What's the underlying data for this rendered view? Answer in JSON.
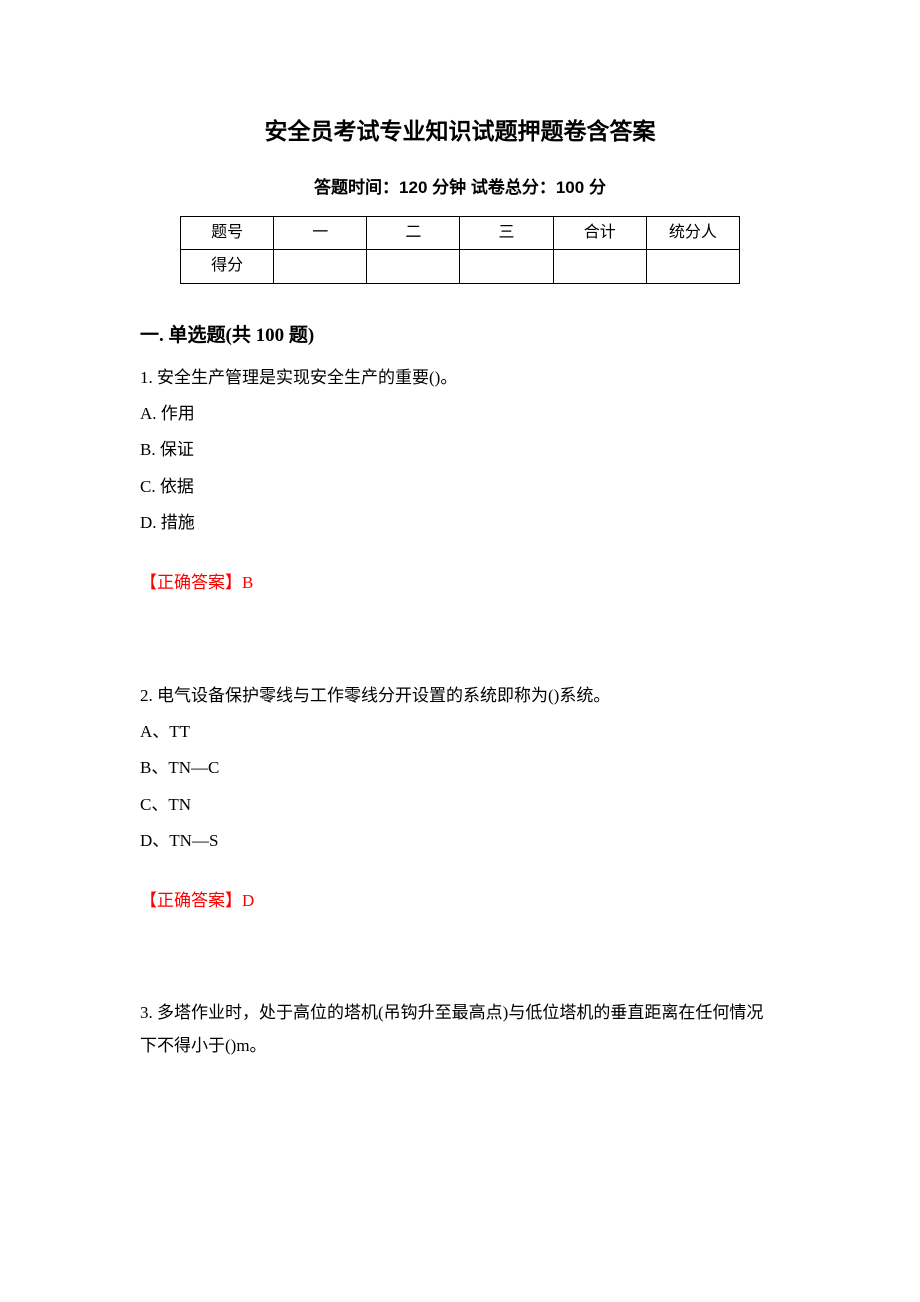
{
  "title": "安全员考试专业知识试题押题卷含答案",
  "subtitle": "答题时间：120 分钟    试卷总分：100 分",
  "table": {
    "row1": [
      "题号",
      "一",
      "二",
      "三",
      "合计",
      "统分人"
    ],
    "row2": [
      "得分",
      "",
      "",
      "",
      "",
      ""
    ]
  },
  "section_heading": "一. 单选题(共 100 题)",
  "questions": [
    {
      "stem": "1. 安全生产管理是实现安全生产的重要()。",
      "options": [
        "A. 作用",
        "B. 保证",
        "C. 依据",
        "D. 措施"
      ],
      "answer": "【正确答案】B"
    },
    {
      "stem": "2. 电气设备保护零线与工作零线分开设置的系统即称为()系统。",
      "options": [
        "A、TT",
        "B、TN—C",
        "C、TN",
        "D、TN—S"
      ],
      "answer": "【正确答案】D"
    },
    {
      "stem": "3. 多塔作业时，处于高位的塔机(吊钩升至最高点)与低位塔机的垂直距离在任何情况下不得小于()m。",
      "options": [],
      "answer": ""
    }
  ]
}
